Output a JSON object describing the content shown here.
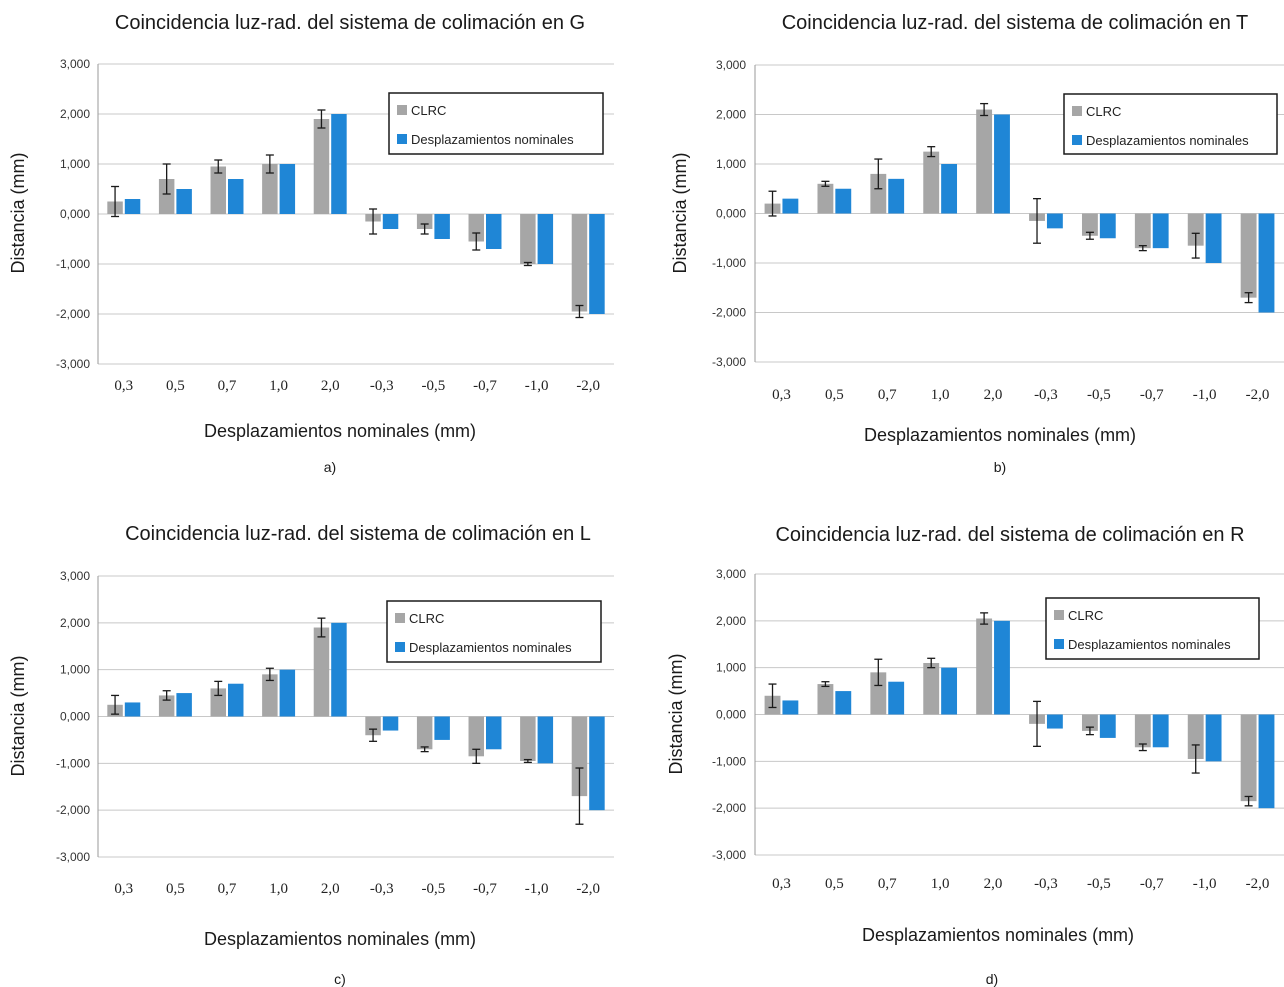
{
  "chart_data": [
    {
      "type": "bar",
      "title": "Coincidencia luz-rad. del sistema de colimación en G",
      "panel_label": "a)",
      "xlabel": "Desplazamientos nominales (mm)",
      "ylabel": "Distancia (mm)",
      "ylim": [
        -3,
        3
      ],
      "yticks": [
        "3,000",
        "2,000",
        "1,000",
        "0,000",
        "-1,000",
        "-2,000",
        "-3,000"
      ],
      "categories": [
        "0,3",
        "0,5",
        "0,7",
        "1,0",
        "2,0",
        "-0,3",
        "-0,5",
        "-0,7",
        "-1,0",
        "-2,0"
      ],
      "grid": true,
      "legend_position": "top-right",
      "series": [
        {
          "name": "CLRC",
          "color": "#a6a6a6",
          "values": [
            0.25,
            0.7,
            0.95,
            1.0,
            1.9,
            -0.15,
            -0.3,
            -0.55,
            -1.0,
            -1.95
          ],
          "errors": [
            0.3,
            0.3,
            0.13,
            0.18,
            0.18,
            0.25,
            0.1,
            0.17,
            0.03,
            0.12
          ]
        },
        {
          "name": "Desplazamientos nominales",
          "color": "#1f86d6",
          "values": [
            0.3,
            0.5,
            0.7,
            1.0,
            2.0,
            -0.3,
            -0.5,
            -0.7,
            -1.0,
            -2.0
          ]
        }
      ]
    },
    {
      "type": "bar",
      "title": "Coincidencia luz-rad. del sistema de colimación en T",
      "panel_label": "b)",
      "xlabel": "Desplazamientos nominales (mm)",
      "ylabel": "Distancia (mm)",
      "ylim": [
        -3,
        3
      ],
      "yticks": [
        "3,000",
        "2,000",
        "1,000",
        "0,000",
        "-1,000",
        "-2,000",
        "-3,000"
      ],
      "categories": [
        "0,3",
        "0,5",
        "0,7",
        "1,0",
        "2,0",
        "-0,3",
        "-0,5",
        "-0,7",
        "-1,0",
        "-2,0"
      ],
      "grid": true,
      "legend_position": "top-right",
      "series": [
        {
          "name": "CLRC",
          "color": "#a6a6a6",
          "values": [
            0.2,
            0.6,
            0.8,
            1.25,
            2.1,
            -0.15,
            -0.45,
            -0.7,
            -0.65,
            -1.7
          ],
          "errors": [
            0.25,
            0.05,
            0.3,
            0.1,
            0.12,
            0.45,
            0.07,
            0.05,
            0.25,
            0.1
          ]
        },
        {
          "name": "Desplazamientos nominales",
          "color": "#1f86d6",
          "values": [
            0.3,
            0.5,
            0.7,
            1.0,
            2.0,
            -0.3,
            -0.5,
            -0.7,
            -1.0,
            -2.0
          ]
        }
      ]
    },
    {
      "type": "bar",
      "title": "Coincidencia luz-rad. del sistema de colimación en L",
      "panel_label": "c)",
      "xlabel": "Desplazamientos nominales (mm)",
      "ylabel": "Distancia (mm)",
      "ylim": [
        -3,
        3
      ],
      "yticks": [
        "3,000",
        "2,000",
        "1,000",
        "0,000",
        "-1,000",
        "-2,000",
        "-3,000"
      ],
      "categories": [
        "0,3",
        "0,5",
        "0,7",
        "1,0",
        "2,0",
        "-0,3",
        "-0,5",
        "-0,7",
        "-1,0",
        "-2,0"
      ],
      "grid": true,
      "legend_position": "top-right",
      "series": [
        {
          "name": "CLRC",
          "color": "#a6a6a6",
          "values": [
            0.25,
            0.45,
            0.6,
            0.9,
            1.9,
            -0.4,
            -0.7,
            -0.85,
            -0.95,
            -1.7
          ],
          "errors": [
            0.2,
            0.1,
            0.15,
            0.13,
            0.2,
            0.13,
            0.05,
            0.15,
            0.03,
            0.6
          ]
        },
        {
          "name": "Desplazamientos nominales",
          "color": "#1f86d6",
          "values": [
            0.3,
            0.5,
            0.7,
            1.0,
            2.0,
            -0.3,
            -0.5,
            -0.7,
            -1.0,
            -2.0
          ]
        }
      ]
    },
    {
      "type": "bar",
      "title": "Coincidencia luz-rad. del sistema de colimación en R",
      "panel_label": "d)",
      "xlabel": "Desplazamientos nominales (mm)",
      "ylabel": "Distancia (mm)",
      "ylim": [
        -3,
        3
      ],
      "yticks": [
        "3,000",
        "2,000",
        "1,000",
        "0,000",
        "-1,000",
        "-2,000",
        "-3,000"
      ],
      "categories": [
        "0,3",
        "0,5",
        "0,7",
        "1,0",
        "2,0",
        "-0,3",
        "-0,5",
        "-0,7",
        "-1,0",
        "-2,0"
      ],
      "grid": true,
      "legend_position": "top-right",
      "series": [
        {
          "name": "CLRC",
          "color": "#a6a6a6",
          "values": [
            0.4,
            0.65,
            0.9,
            1.1,
            2.05,
            -0.2,
            -0.35,
            -0.7,
            -0.95,
            -1.85
          ],
          "errors": [
            0.25,
            0.05,
            0.28,
            0.1,
            0.12,
            0.48,
            0.08,
            0.07,
            0.3,
            0.1
          ]
        },
        {
          "name": "Desplazamientos nominales",
          "color": "#1f86d6",
          "values": [
            0.3,
            0.5,
            0.7,
            1.0,
            2.0,
            -0.3,
            -0.5,
            -0.7,
            -1.0,
            -2.0
          ]
        }
      ]
    }
  ]
}
